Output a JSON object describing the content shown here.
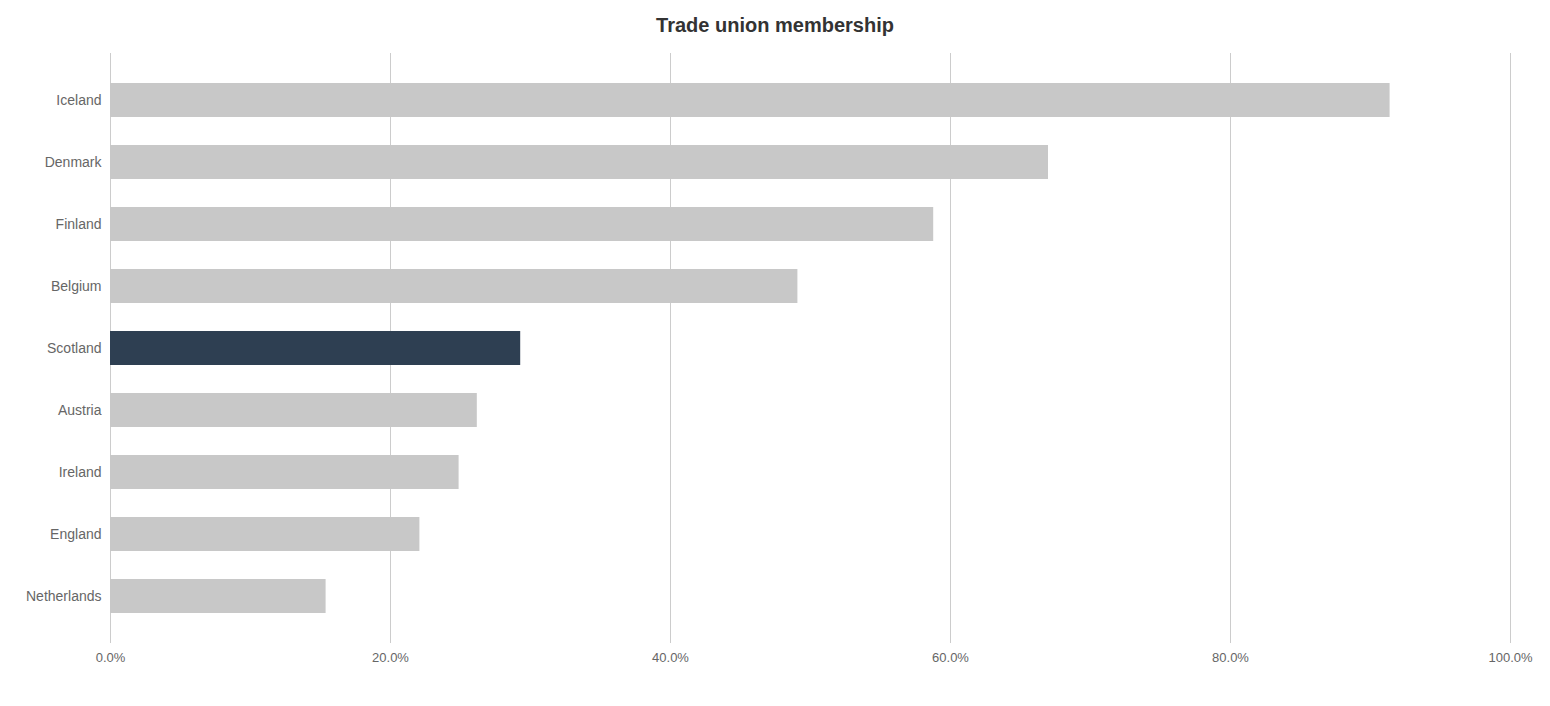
{
  "chart_data": {
    "type": "bar",
    "orientation": "horizontal",
    "title": "Trade union membership",
    "categories": [
      "Iceland",
      "Denmark",
      "Finland",
      "Belgium",
      "Scotland",
      "Austria",
      "Ireland",
      "England",
      "Netherlands"
    ],
    "values": [
      91.4,
      67.0,
      58.8,
      49.1,
      29.3,
      26.2,
      24.9,
      22.1,
      15.4
    ],
    "colors": [
      "#c8c8c8",
      "#c8c8c8",
      "#c8c8c8",
      "#c8c8c8",
      "#2e3f52",
      "#c8c8c8",
      "#c8c8c8",
      "#c8c8c8",
      "#c8c8c8"
    ],
    "xlim": [
      0,
      100
    ],
    "xticks": [
      {
        "value": 0,
        "label": "0.0%"
      },
      {
        "value": 20,
        "label": "20.0%"
      },
      {
        "value": 40,
        "label": "40.0%"
      },
      {
        "value": 60,
        "label": "60.0%"
      },
      {
        "value": 80,
        "label": "80.0%"
      },
      {
        "value": 100,
        "label": "100.0%"
      }
    ],
    "grid": true
  }
}
